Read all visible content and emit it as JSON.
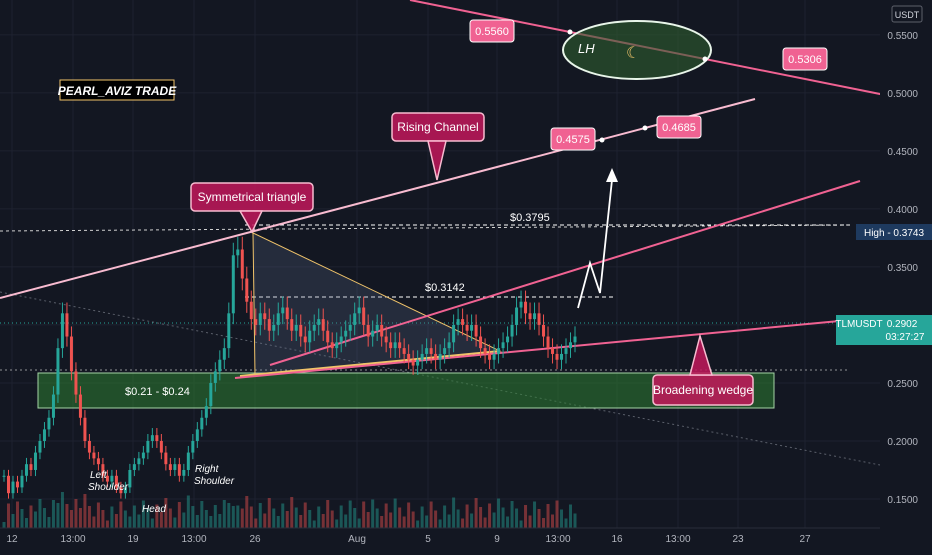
{
  "watermark": "PEARL_AVIZ TRADE",
  "currency": "USDT",
  "colors": {
    "background": "#131722",
    "up": "#26a69a",
    "down": "#ef5350",
    "trend": "#f06292",
    "channel": "#f8bbd0",
    "triangle": "#f0c36a",
    "callout": "#c2185b",
    "badge_green": "#26a69a",
    "badge_navy": "#1e3a5f"
  },
  "y_axis": {
    "ticks": [
      "0.5500",
      "0.5000",
      "0.4500",
      "0.4000",
      "0.3500",
      "0.3000",
      "0.2500",
      "0.2000",
      "0.1500"
    ]
  },
  "x_axis": {
    "ticks": [
      "12",
      "13:00",
      "19",
      "13:00",
      "26",
      "Aug",
      "5",
      "9",
      "13:00",
      "16",
      "13:00",
      "23",
      "27"
    ]
  },
  "badges": {
    "high": "High - 0.3743",
    "symbol": "TLMUSDT",
    "price": "0.2902",
    "countdown": "03:27:27"
  },
  "annotations": {
    "rising_channel": "Rising Channel",
    "sym_triangle": "Symmetrical triangle",
    "broadening": "Broadening wedge",
    "zone": "$0.21 - $0.24",
    "lvl_3795": "$0.3795",
    "lvl_3142": "$0.3142",
    "p_5560": "0.5560",
    "p_5306": "0.5306",
    "p_4575": "0.4575",
    "p_4685": "0.4685",
    "lh": "LH",
    "left_shoulder": "Left Shoulder",
    "head": "Head",
    "right_shoulder": "Right Shoulder"
  },
  "chart_data": {
    "type": "candlestick",
    "symbol": "TLMUSDT",
    "ylim": [
      0.125,
      0.58
    ],
    "current_price": 0.2902,
    "levels": {
      "high": 0.3743,
      "resistance_a": 0.3795,
      "resistance_b": 0.3142,
      "support_zone": [
        0.21,
        0.24
      ]
    },
    "targets": [
      0.4575,
      0.4685
    ],
    "lower_high_line": [
      0.556,
      0.5306
    ],
    "price_path": [
      0.17,
      0.155,
      0.165,
      0.16,
      0.17,
      0.18,
      0.175,
      0.19,
      0.2,
      0.21,
      0.22,
      0.24,
      0.28,
      0.31,
      0.29,
      0.26,
      0.24,
      0.22,
      0.2,
      0.19,
      0.185,
      0.18,
      0.17,
      0.165,
      0.17,
      0.16,
      0.155,
      0.16,
      0.175,
      0.18,
      0.185,
      0.19,
      0.2,
      0.205,
      0.2,
      0.19,
      0.18,
      0.175,
      0.18,
      0.17,
      0.175,
      0.19,
      0.2,
      0.21,
      0.22,
      0.23,
      0.25,
      0.26,
      0.27,
      0.28,
      0.31,
      0.36,
      0.365,
      0.34,
      0.32,
      0.305,
      0.3,
      0.31,
      0.305,
      0.295,
      0.3,
      0.31,
      0.315,
      0.305,
      0.295,
      0.3,
      0.29,
      0.285,
      0.295,
      0.3,
      0.305,
      0.295,
      0.285,
      0.28,
      0.285,
      0.29,
      0.295,
      0.3,
      0.31,
      0.315,
      0.3,
      0.29,
      0.295,
      0.3,
      0.29,
      0.285,
      0.28,
      0.285,
      0.28,
      0.275,
      0.27,
      0.265,
      0.27,
      0.275,
      0.28,
      0.275,
      0.27,
      0.275,
      0.28,
      0.285,
      0.3,
      0.305,
      0.3,
      0.295,
      0.3,
      0.29,
      0.28,
      0.275,
      0.27,
      0.275,
      0.28,
      0.285,
      0.29,
      0.3,
      0.315,
      0.32,
      0.31,
      0.305,
      0.31,
      0.3,
      0.29,
      0.28,
      0.275,
      0.27,
      0.275,
      0.28,
      0.285,
      0.29
    ]
  }
}
